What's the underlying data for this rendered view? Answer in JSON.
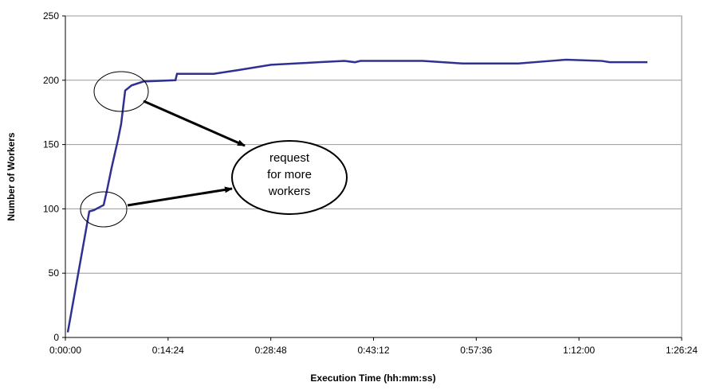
{
  "chart_data": {
    "type": "line",
    "x_label": "Execution Time (hh:mm:ss)",
    "y_label": "Number of Workers",
    "annotation": [
      "request",
      "for more",
      "workers"
    ],
    "xlim": [
      0,
      5184
    ],
    "xticks": [
      {
        "value": 0,
        "label": "0:00:00"
      },
      {
        "value": 864,
        "label": "0:14:24"
      },
      {
        "value": 1728,
        "label": "0:28:48"
      },
      {
        "value": 2592,
        "label": "0:43:12"
      },
      {
        "value": 3456,
        "label": "0:57:36"
      },
      {
        "value": 4320,
        "label": "1:12:00"
      },
      {
        "value": 5184,
        "label": "1:26:24"
      }
    ],
    "ylim": [
      0,
      250
    ],
    "yticks": [
      0,
      50,
      100,
      150,
      200,
      250
    ],
    "grid": true,
    "series": [
      {
        "color": "#2e3192",
        "x": [
          20,
          201,
          241,
          322,
          349,
          389,
          443,
          469,
          503,
          557,
          657,
          926,
          939,
          1248,
          1462,
          1730,
          2133,
          2347,
          2435,
          2482,
          3005,
          3340,
          3810,
          4078,
          4212,
          4514,
          4581,
          4896
        ],
        "values": [
          4,
          98,
          99,
          103,
          114,
          132,
          154,
          166,
          192,
          196,
          199,
          200,
          205,
          205,
          208,
          212,
          214,
          215,
          214,
          215,
          215,
          213,
          213,
          215,
          216,
          215,
          214,
          214
        ]
      }
    ]
  }
}
